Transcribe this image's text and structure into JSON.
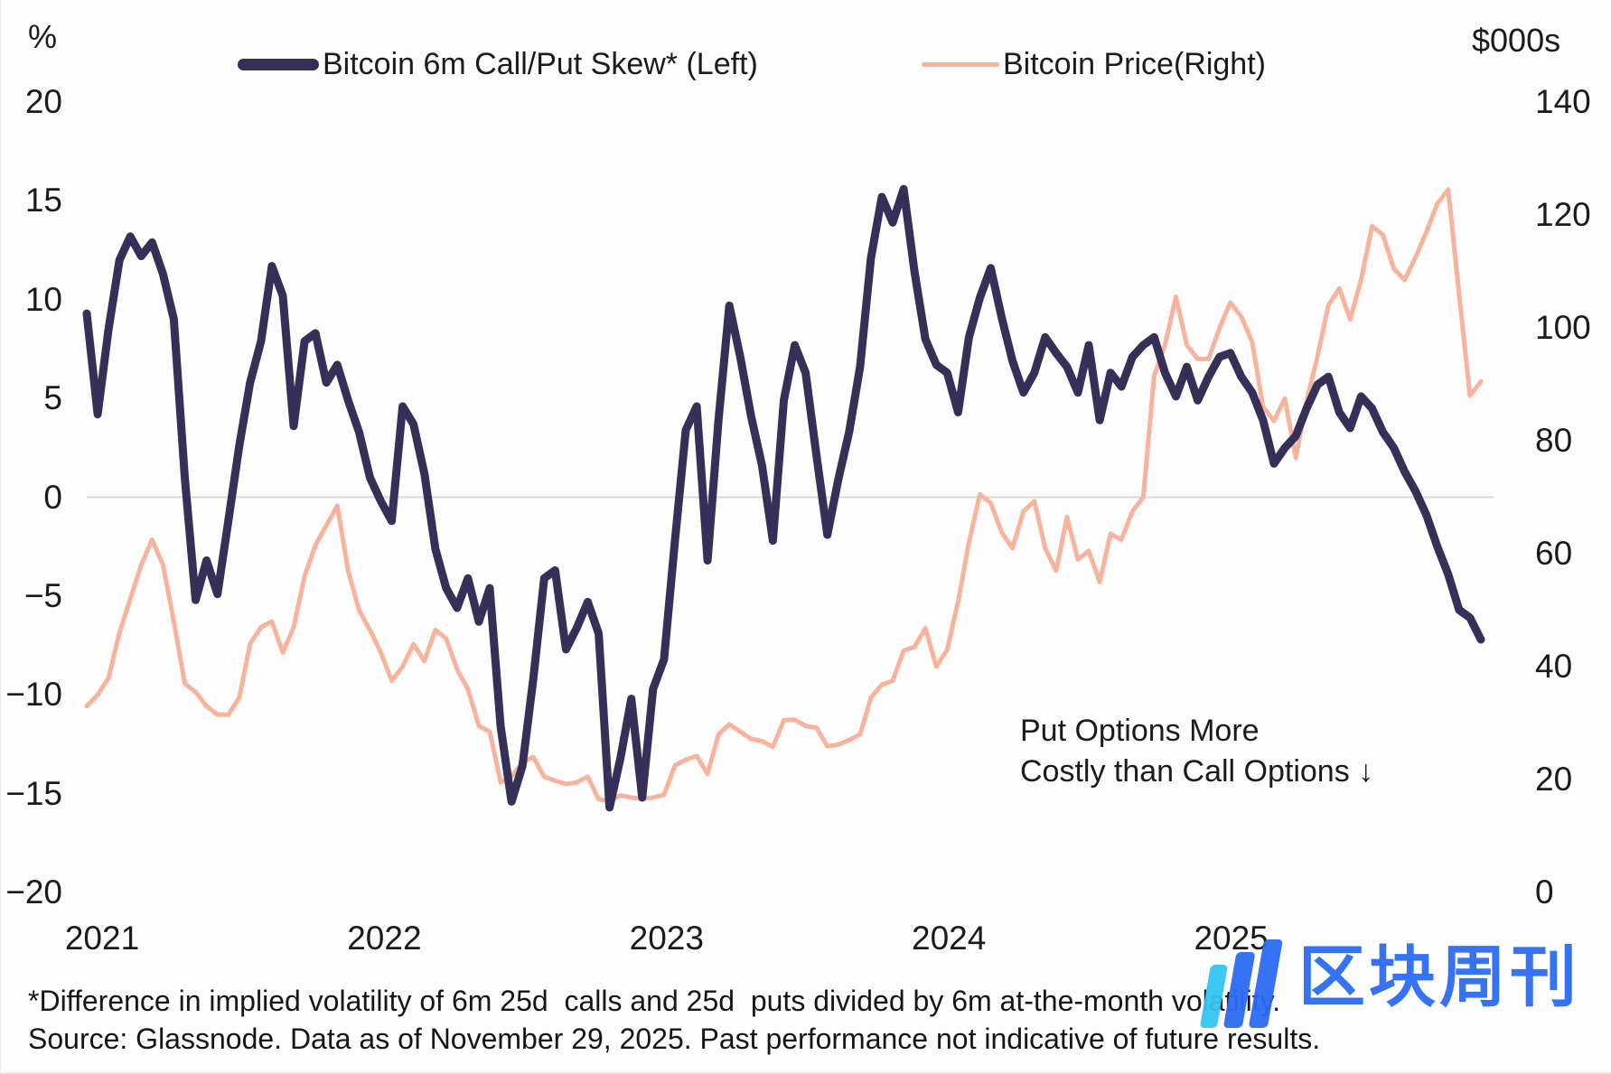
{
  "header": {
    "left_axis_unit": "%",
    "right_axis_unit": "$000s",
    "legend": [
      {
        "label": "Bitcoin 6m Call/Put Skew* (Left)",
        "color": "#343057"
      },
      {
        "label": "Bitcoin Price(Right)",
        "color": "#f8b39c"
      }
    ]
  },
  "annotation": {
    "line1": "Put Options More",
    "line2": "Costly than Call Options ↓"
  },
  "footnotes": {
    "line1": "*Difference in implied volatility of 6m 25d  calls and 25d  puts divided by 6m at-the-month volatility.",
    "line2": "Source: Glassnode. Data as of November 29, 2025. Past performance not indicative of future results."
  },
  "watermark": {
    "text": "区块周刊",
    "blue": "#2b6cf4",
    "cyan": "#33c5f3"
  },
  "chart_data": {
    "type": "line",
    "title": "",
    "xlabel": "",
    "ylabel_left": "%",
    "ylabel_right": "$000s",
    "x_tick_years": [
      2021,
      2022,
      2023,
      2024,
      2025
    ],
    "x_start": 2020.95,
    "x_end": 2025.92,
    "left_axis": {
      "unit": "%",
      "range": [
        -20,
        20
      ],
      "ticks": [
        20,
        15,
        10,
        5,
        0,
        -5,
        -10,
        -15,
        -20
      ]
    },
    "right_axis": {
      "unit": "$000s",
      "range": [
        0,
        140
      ],
      "ticks": [
        140,
        120,
        100,
        80,
        60,
        40,
        20,
        0
      ]
    },
    "grid": "horizontal-zero-line-only",
    "zero_line_color": "#d9d9d9",
    "legend_position": "top",
    "series": [
      {
        "name": "Bitcoin 6m Call/Put Skew* (Left)",
        "axis": "left",
        "color": "#343057",
        "stroke_width": 9,
        "values": [
          9.3,
          4.2,
          8.5,
          12.0,
          13.2,
          12.2,
          12.9,
          11.3,
          9.0,
          1.0,
          -5.2,
          -3.2,
          -4.9,
          -1.2,
          2.6,
          5.8,
          7.9,
          11.7,
          10.2,
          3.6,
          7.9,
          8.3,
          5.8,
          6.7,
          4.9,
          3.3,
          1.0,
          -0.2,
          -1.2,
          4.6,
          3.7,
          1.2,
          -2.6,
          -4.6,
          -5.6,
          -4.1,
          -6.3,
          -4.6,
          -11.6,
          -15.4,
          -13.6,
          -9.2,
          -4.1,
          -3.7,
          -7.7,
          -6.6,
          -5.3,
          -6.9,
          -15.7,
          -13.2,
          -10.2,
          -15.2,
          -9.7,
          -8.2,
          -2.2,
          3.4,
          4.6,
          -3.2,
          3.9,
          9.7,
          7.1,
          4.1,
          1.6,
          -2.2,
          4.9,
          7.7,
          6.3,
          2.1,
          -1.9,
          0.9,
          3.3,
          6.6,
          12.1,
          15.2,
          13.9,
          15.6,
          11.4,
          8.0,
          6.7,
          6.3,
          4.3,
          8.1,
          10.1,
          11.6,
          9.1,
          6.9,
          5.3,
          6.3,
          8.1,
          7.3,
          6.6,
          5.3,
          7.7,
          3.9,
          6.3,
          5.6,
          7.1,
          7.7,
          8.1,
          6.3,
          5.1,
          6.6,
          4.9,
          6.1,
          7.1,
          7.3,
          6.1,
          5.3,
          3.9,
          1.7,
          2.5,
          3.1,
          4.5,
          5.7,
          6.1,
          4.3,
          3.5,
          5.1,
          4.5,
          3.3,
          2.5,
          1.3,
          0.3,
          -0.9,
          -2.5,
          -3.9,
          -5.7,
          -6.1,
          -7.2
        ]
      },
      {
        "name": "Bitcoin Price(Right)",
        "axis": "right",
        "color": "#f8b39c",
        "stroke_width": 5,
        "values": [
          33,
          35,
          38,
          46,
          52,
          58,
          62.5,
          58,
          48,
          37,
          35.5,
          33,
          31.5,
          31.5,
          34.5,
          44,
          47,
          48,
          42.5,
          47,
          56,
          61.5,
          65,
          68.5,
          57,
          50,
          46.5,
          42.5,
          37.5,
          40,
          44,
          41,
          46.5,
          45,
          39.5,
          36,
          29.5,
          28.5,
          19.5,
          20.5,
          23,
          24,
          20.5,
          19.8,
          19.2,
          19.5,
          20.5,
          16.5,
          16.2,
          17.2,
          16.8,
          16.6,
          16.8,
          17.3,
          22.5,
          23.5,
          24.2,
          21,
          28,
          29.8,
          28.5,
          27.2,
          26.8,
          25.8,
          30.5,
          30.6,
          29.5,
          29.2,
          25.9,
          26.2,
          27,
          28,
          34.5,
          36.8,
          37.5,
          42.8,
          43.5,
          46.8,
          40,
          43,
          51.5,
          62,
          70.5,
          69,
          63.8,
          61,
          67.5,
          69.3,
          61,
          57,
          66.5,
          59,
          60.5,
          55,
          63.5,
          62.5,
          67.5,
          70,
          91.5,
          97,
          105.5,
          97,
          94.5,
          94.5,
          100,
          104.5,
          102,
          97.5,
          86,
          83.5,
          87.5,
          77,
          87,
          95,
          104,
          107,
          101.5,
          108.5,
          118,
          116.5,
          110.5,
          108.5,
          112.5,
          117,
          122,
          124.5,
          106,
          88,
          90.5
        ]
      }
    ]
  }
}
